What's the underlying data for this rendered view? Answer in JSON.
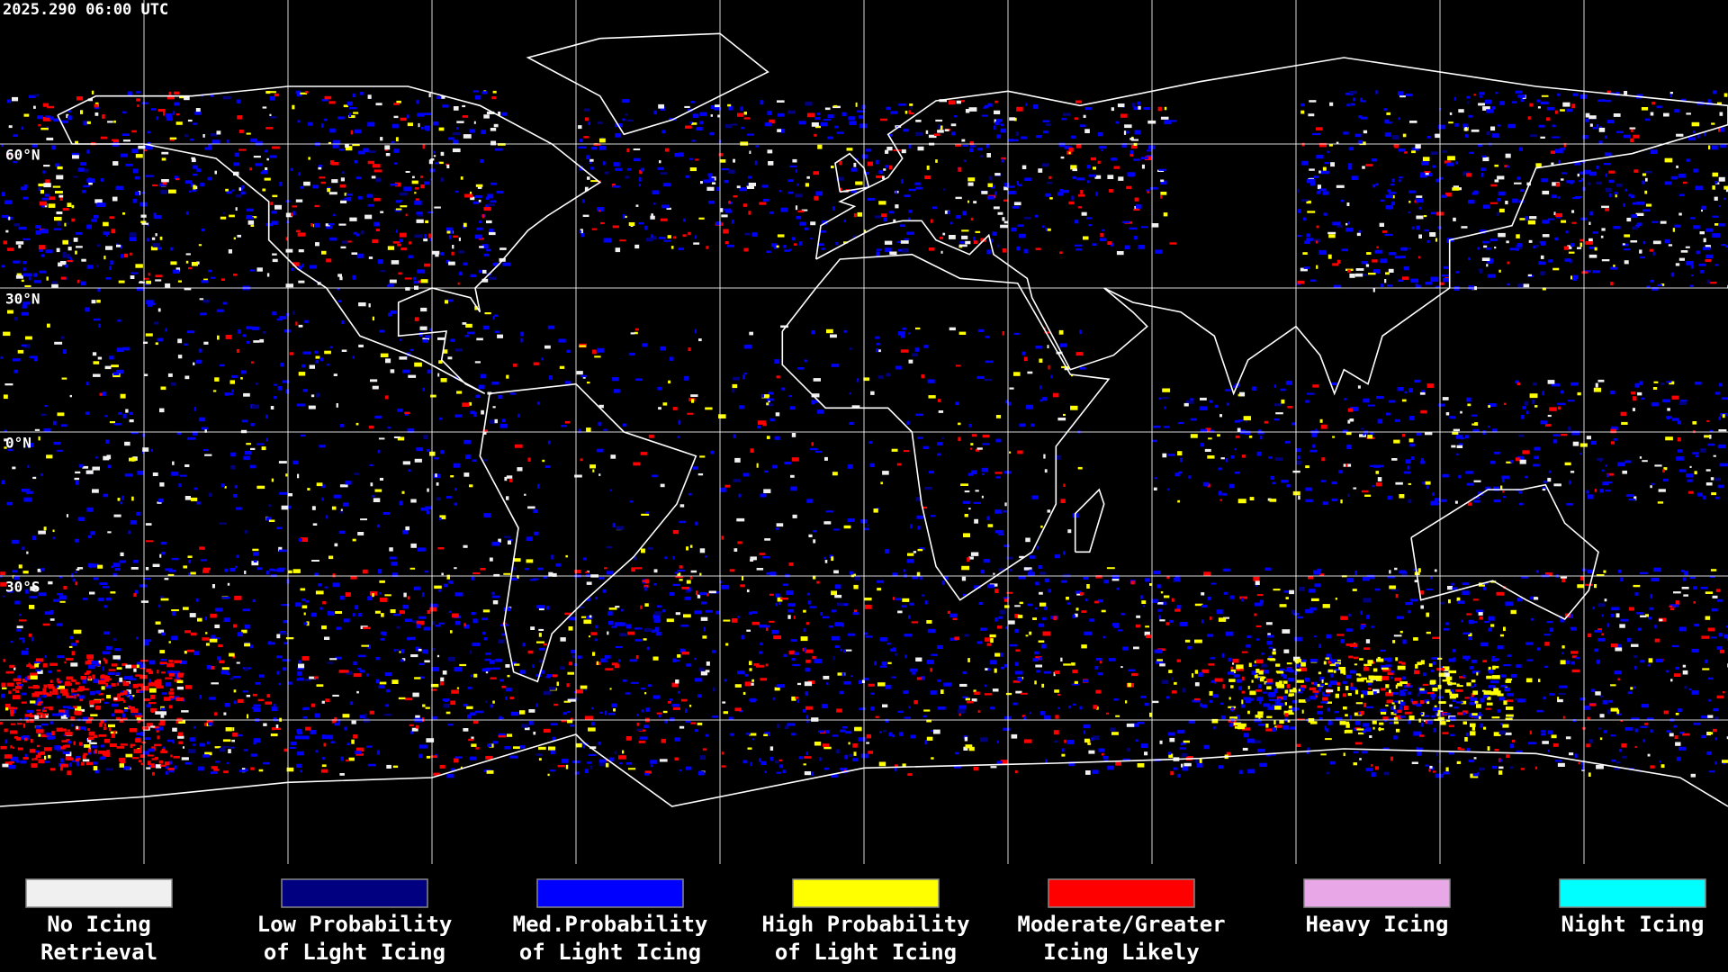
{
  "header": {
    "timestamp": "2025.290 06:00 UTC"
  },
  "map": {
    "lat_labels": [
      "60°N",
      "30°N",
      "0°N",
      "30°S"
    ]
  },
  "legend": {
    "items": [
      {
        "color": "#f0f0f0",
        "lines": [
          "No Icing",
          "Retrieval"
        ]
      },
      {
        "color": "#000080",
        "lines": [
          "Low Probability",
          "of Light Icing"
        ]
      },
      {
        "color": "#0000ff",
        "lines": [
          "Med.Probability",
          "of Light Icing"
        ]
      },
      {
        "color": "#ffff00",
        "lines": [
          "High Probability",
          "of Light Icing"
        ]
      },
      {
        "color": "#ff0000",
        "lines": [
          "Moderate/Greater",
          "Icing Likely"
        ]
      },
      {
        "color": "#e8a8e8",
        "lines": [
          "Heavy Icing"
        ]
      },
      {
        "color": "#00ffff",
        "lines": [
          "Night Icing"
        ]
      }
    ]
  }
}
